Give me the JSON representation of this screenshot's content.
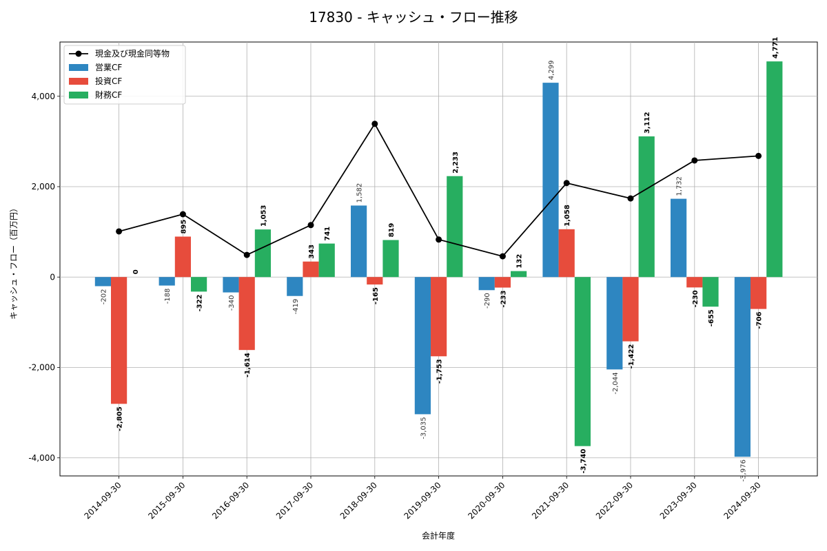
{
  "chart_data": {
    "type": "bar",
    "title": "17830 - キャッシュ・フロー推移",
    "xlabel": "会計年度",
    "ylabel": "キャッシュ・フロー（百万円）",
    "categories": [
      "2014-09-30",
      "2015-09-30",
      "2016-09-30",
      "2017-09-30",
      "2018-09-30",
      "2019-09-30",
      "2020-09-30",
      "2021-09-30",
      "2022-09-30",
      "2023-09-30",
      "2024-09-30"
    ],
    "ylim": [
      -4400,
      5200
    ],
    "yticks": [
      -4000,
      -2000,
      0,
      2000,
      4000
    ],
    "ytick_labels": [
      "-4,000",
      "-2,000",
      "0",
      "2,000",
      "4,000"
    ],
    "grid": true,
    "legend_position": "top-left",
    "series": [
      {
        "name": "営業CF",
        "kind": "bar",
        "color": "#2e86c1",
        "values": [
          -202,
          -188,
          -340,
          -419,
          1582,
          -3035,
          -290,
          4299,
          -2044,
          1732,
          -3976
        ],
        "labels": [
          "-202",
          "-188",
          "-340",
          "-419",
          "1,582",
          "-3,035",
          "-290",
          "4,299",
          "-2,044",
          "1,732",
          "-3,976"
        ]
      },
      {
        "name": "投資CF",
        "kind": "bar",
        "color": "#e74c3c",
        "values": [
          -2805,
          895,
          -1614,
          343,
          -165,
          -1753,
          -233,
          1058,
          -1422,
          -230,
          -706
        ],
        "labels": [
          "-2,805",
          "895",
          "-1,614",
          "343",
          "-165",
          "-1,753",
          "-233",
          "1,058",
          "-1,422",
          "-230",
          "-706"
        ]
      },
      {
        "name": "財務CF",
        "kind": "bar",
        "color": "#27ae60",
        "values": [
          0,
          -322,
          1053,
          741,
          819,
          2233,
          132,
          -3740,
          3112,
          -655,
          4771
        ],
        "labels": [
          "0",
          "-322",
          "1,053",
          "741",
          "819",
          "2,233",
          "132",
          "-3,740",
          "3,112",
          "-655",
          "4,771"
        ]
      },
      {
        "name": "現金及び現金同等物",
        "kind": "line",
        "color": "#000000",
        "values": [
          1010,
          1390,
          490,
          1150,
          3390,
          830,
          460,
          2080,
          1740,
          2580,
          2680
        ]
      }
    ]
  }
}
